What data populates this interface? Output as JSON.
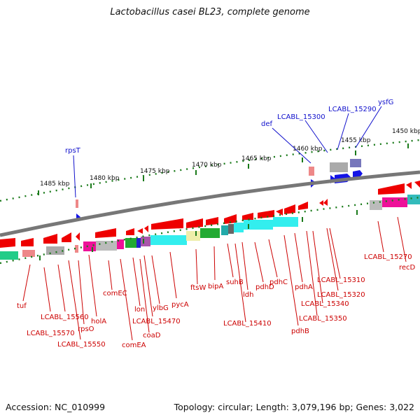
{
  "title": "Lactobacillus casei BL23, complete genome",
  "footer": {
    "accession": "Accession: NC_010999",
    "summary": "Topology: circular; Length: 3,079,196 bp; Genes: 3,022"
  },
  "colors": {
    "forward_gene": "#0000ee",
    "reverse_gene": "#ee0000",
    "backbone": "#777777",
    "tick": "#1a7a1a",
    "label_top": "#1010cc",
    "label_bottom": "#cc0000"
  },
  "scale": {
    "labels": [
      "1485 kbp",
      "1480 kbp",
      "1475 kbp",
      "1470 kbp",
      "1465 kbp",
      "1460 kbp",
      "1455 kbp",
      "1450 kbp"
    ]
  },
  "top_labels": [
    "rpsT",
    "def",
    "LCABL_15300",
    "LCABL_15290",
    "ysfG"
  ],
  "bottom_labels": [
    "tuf",
    "LCABL_15560",
    "LCABL_15570",
    "LCABL_15550",
    "rpsO",
    "holA",
    "comEC",
    "comEA",
    "lon",
    "coaD",
    "LCABL_15470",
    "ylbG",
    "pycA",
    "ftsW",
    "bipA",
    "suhB",
    "ldh",
    "LCABL_15410",
    "pdhD",
    "pdhC",
    "pdhB",
    "pdhA",
    "LCABL_15350",
    "LCABL_15340",
    "LCABL_15320",
    "LCABL_15310",
    "LCABL_15270",
    "recD"
  ]
}
